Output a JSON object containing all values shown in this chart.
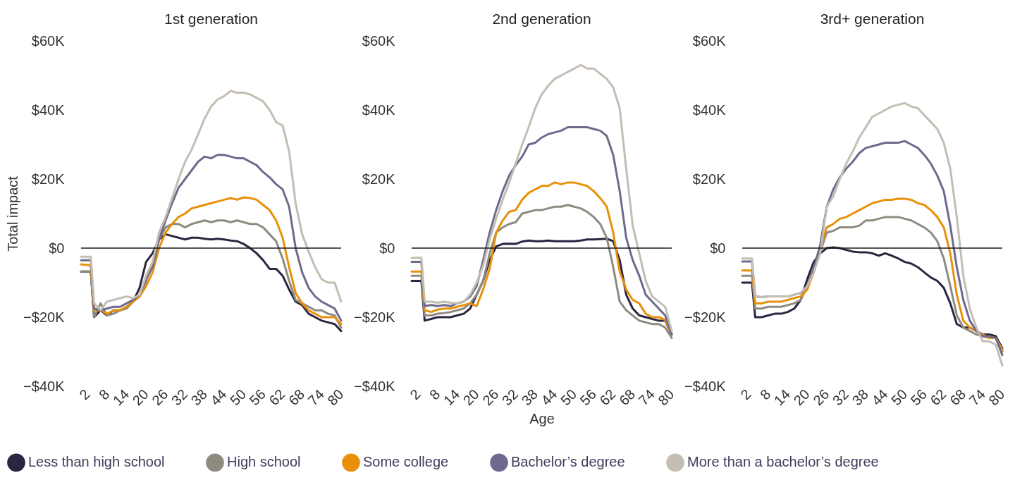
{
  "chart_data": [
    {
      "type": "line",
      "title": "1st generation",
      "ylabel": "Total impact",
      "legend": "bottom",
      "line_style": "solid",
      "x": [
        0,
        3,
        4,
        6,
        8,
        10,
        12,
        14,
        16,
        18,
        20,
        22,
        24,
        26,
        28,
        30,
        32,
        34,
        36,
        38,
        40,
        42,
        44,
        46,
        48,
        50,
        52,
        54,
        56,
        58,
        60,
        62,
        64,
        66,
        68,
        70,
        72,
        74,
        76,
        78,
        80
      ],
      "xlim": [
        0,
        80
      ],
      "xticks": [
        2,
        8,
        14,
        20,
        26,
        32,
        38,
        44,
        50,
        56,
        62,
        68,
        74,
        80
      ],
      "ylim": [
        -40,
        60
      ],
      "yticks": [
        {
          "value": -40,
          "label": "−$40K"
        },
        {
          "value": -20,
          "label": "−$20K"
        },
        {
          "value": 0,
          "label": "$0"
        },
        {
          "value": 20,
          "label": "$20K"
        },
        {
          "value": 40,
          "label": "$40K"
        },
        {
          "value": 60,
          "label": "$60K"
        }
      ],
      "ref_lines": [
        {
          "axis": "y",
          "value": 0,
          "color": "#1a1a1a"
        }
      ],
      "series": [
        {
          "name": "Less than high school",
          "color": "#2a2540",
          "values": [
            -6.8,
            -6.8,
            -20,
            -18,
            -19.5,
            -18,
            -18,
            -17,
            -15.5,
            -11.5,
            -4,
            -1.5,
            2.5,
            4,
            3.5,
            3,
            2.5,
            3,
            3,
            2.7,
            2.5,
            2.7,
            2.5,
            2.2,
            2,
            1.2,
            0,
            -1.5,
            -3.5,
            -6,
            -6,
            -8,
            -12,
            -15.5,
            -16.5,
            -19,
            -20,
            -21,
            -21.5,
            -22,
            -24
          ]
        },
        {
          "name": "High school",
          "color": "#8e8a80",
          "values": [
            -6.8,
            -6.8,
            -20,
            -16,
            -19.5,
            -19,
            -18,
            -17.5,
            -15.5,
            -14,
            -9.5,
            -4,
            2.5,
            6,
            7,
            7,
            6,
            7,
            7.5,
            8,
            7.5,
            8,
            8,
            7.5,
            8,
            7.5,
            7,
            7,
            6,
            4,
            2,
            -3,
            -9.5,
            -15,
            -16,
            -17,
            -18,
            -18,
            -19,
            -19.5,
            -23
          ]
        },
        {
          "name": "Some college",
          "color": "#e8900a",
          "values": [
            -4.7,
            -5,
            -18,
            -18,
            -19,
            -18,
            -18,
            -17,
            -15.5,
            -14,
            -11,
            -7,
            0,
            4.5,
            7,
            9,
            10,
            11.5,
            12,
            12.5,
            13,
            13.5,
            14,
            14.5,
            14,
            14.7,
            14.5,
            14,
            12.5,
            11,
            8,
            3,
            -5.5,
            -13,
            -16,
            -18,
            -19,
            -20,
            -20,
            -20,
            -22
          ]
        },
        {
          "name": "Bachelor’s degree",
          "color": "#6e6a8e",
          "values": [
            -3.5,
            -3.5,
            -17.5,
            -18,
            -17.5,
            -17,
            -17,
            -16,
            -15,
            -13.5,
            -9,
            -5.5,
            2.5,
            8,
            13,
            17.5,
            20,
            22.5,
            25,
            26.5,
            26,
            27,
            27,
            26.5,
            26,
            26,
            25,
            24,
            22,
            20.5,
            18.5,
            17,
            12,
            0,
            -7,
            -11.5,
            -14,
            -15.5,
            -16.5,
            -17.5,
            -21
          ]
        },
        {
          "name": "More than a bachelor’s degree",
          "color": "#c4bdb2",
          "values": [
            -2.5,
            -2.5,
            -16,
            -18,
            -15.5,
            -15,
            -14.5,
            -14,
            -14.5,
            -13.5,
            -8,
            -4,
            4.5,
            9,
            14.5,
            20,
            25,
            28.5,
            33,
            37.5,
            41,
            43,
            44,
            45.5,
            45,
            45,
            44.5,
            43.5,
            42.5,
            40,
            36.5,
            35.5,
            28,
            13,
            4,
            -1,
            -5.5,
            -9,
            -10,
            -10,
            -15.5
          ]
        }
      ]
    },
    {
      "type": "line",
      "title": "2nd generation",
      "xlabel": "Age",
      "line_style": "solid",
      "x": [
        0,
        3,
        4,
        6,
        8,
        10,
        12,
        14,
        16,
        18,
        20,
        22,
        24,
        26,
        28,
        30,
        32,
        34,
        36,
        38,
        40,
        42,
        44,
        46,
        48,
        50,
        52,
        54,
        56,
        58,
        60,
        62,
        64,
        66,
        68,
        70,
        72,
        74,
        76,
        78,
        80
      ],
      "xlim": [
        0,
        80
      ],
      "xticks": [
        2,
        8,
        14,
        20,
        26,
        32,
        38,
        44,
        50,
        56,
        62,
        68,
        74,
        80
      ],
      "ylim": [
        -40,
        60
      ],
      "yticks": [
        {
          "value": -40,
          "label": "−$40K"
        },
        {
          "value": -20,
          "label": "−$20K"
        },
        {
          "value": 0,
          "label": "$0"
        },
        {
          "value": 20,
          "label": "$20K"
        },
        {
          "value": 40,
          "label": "$40K"
        },
        {
          "value": 60,
          "label": "$60K"
        }
      ],
      "ref_lines": [
        {
          "axis": "y",
          "value": 0,
          "color": "#1a1a1a"
        }
      ],
      "series": [
        {
          "color": "#2a2540",
          "values": [
            -9.5,
            -9.5,
            -21,
            -20.5,
            -20,
            -20,
            -20,
            -19.5,
            -19,
            -17.5,
            -13.5,
            -9.5,
            -3.5,
            0.5,
            1.2,
            1.3,
            1.2,
            1.9,
            2.2,
            2,
            2,
            2.2,
            2,
            2,
            2,
            2,
            2.2,
            2.5,
            2.5,
            2.6,
            2.7,
            2,
            -3.5,
            -13.5,
            -17.5,
            -19.5,
            -20,
            -20.5,
            -21,
            -21,
            -25
          ]
        },
        {
          "color": "#8e8a80",
          "values": [
            -8,
            -8,
            -19.5,
            -19.5,
            -19,
            -18.8,
            -18.5,
            -18,
            -17.5,
            -16,
            -13.5,
            -9.5,
            -1.5,
            4.5,
            6,
            7,
            7.5,
            10,
            10.5,
            11,
            11,
            11.5,
            12,
            12,
            12.5,
            12,
            11.5,
            10.5,
            9,
            7,
            3,
            -5.5,
            -15.5,
            -18,
            -19.5,
            -21,
            -21.5,
            -22,
            -22,
            -23,
            -26
          ]
        },
        {
          "color": "#e8900a",
          "values": [
            -6.8,
            -6.8,
            -18,
            -18.5,
            -17.8,
            -17.5,
            -17.5,
            -17,
            -16.5,
            -16,
            -16.8,
            -12,
            -6,
            4.5,
            8,
            10.5,
            11,
            14,
            16,
            17,
            18,
            18,
            19,
            18.5,
            19,
            19,
            18.5,
            18,
            16.5,
            14.5,
            12,
            4.5,
            -6.8,
            -12,
            -15,
            -16,
            -19,
            -20,
            -20,
            -20.8,
            -25
          ]
        },
        {
          "color": "#6e6a8e",
          "values": [
            -4,
            -4,
            -16.8,
            -16.5,
            -16.8,
            -16.5,
            -16.8,
            -16,
            -15.5,
            -14,
            -11,
            -3.5,
            4.5,
            11,
            16.5,
            21,
            24,
            26.5,
            30,
            30.5,
            32,
            33,
            33.5,
            34,
            35,
            35,
            35,
            35,
            34.5,
            34,
            32.5,
            27,
            16.5,
            3,
            -3.5,
            -8,
            -13.5,
            -15.5,
            -17.5,
            -19.5,
            -25
          ]
        },
        {
          "color": "#c4bdb2",
          "values": [
            -2.8,
            -2.8,
            -15.5,
            -15.5,
            -15.8,
            -15.5,
            -15.8,
            -16,
            -15.5,
            -13.5,
            -10,
            -5,
            2.5,
            8.5,
            14,
            19,
            24.5,
            30,
            35,
            40.5,
            44.5,
            47,
            49,
            50,
            51,
            52,
            53,
            52,
            52,
            50.5,
            49,
            46.5,
            40.5,
            23,
            6.5,
            -1.5,
            -9.5,
            -14,
            -15.5,
            -17,
            -24
          ]
        }
      ]
    },
    {
      "type": "line",
      "title": "3rd+ generation",
      "line_style": "solid",
      "x": [
        0,
        3,
        4,
        6,
        8,
        10,
        12,
        14,
        16,
        18,
        20,
        22,
        24,
        26,
        28,
        30,
        32,
        34,
        36,
        38,
        40,
        42,
        44,
        46,
        48,
        50,
        52,
        54,
        56,
        58,
        60,
        62,
        64,
        66,
        68,
        70,
        72,
        74,
        76,
        78,
        80
      ],
      "xlim": [
        0,
        80
      ],
      "xticks": [
        2,
        8,
        14,
        20,
        26,
        32,
        38,
        44,
        50,
        56,
        62,
        68,
        74,
        80
      ],
      "ylim": [
        -40,
        60
      ],
      "yticks": [
        {
          "value": -40,
          "label": "−$40K"
        },
        {
          "value": -20,
          "label": "−$20K"
        },
        {
          "value": 0,
          "label": "$0"
        },
        {
          "value": 20,
          "label": "$20K"
        },
        {
          "value": 40,
          "label": "$40K"
        },
        {
          "value": 60,
          "label": "$60K"
        }
      ],
      "ref_lines": [
        {
          "axis": "y",
          "value": 0,
          "color": "#1a1a1a"
        }
      ],
      "series": [
        {
          "color": "#2a2540",
          "values": [
            -10,
            -10,
            -20,
            -20,
            -19.5,
            -19,
            -19,
            -18.5,
            -17.5,
            -15,
            -9,
            -4,
            -1.5,
            0,
            0.2,
            0,
            -0.5,
            -1,
            -1.2,
            -1.2,
            -1.5,
            -2.2,
            -1.5,
            -2.2,
            -3,
            -4,
            -4.5,
            -5.5,
            -7,
            -8.5,
            -9.5,
            -11.5,
            -16,
            -22,
            -23,
            -23,
            -24,
            -25,
            -25,
            -25.5,
            -29
          ]
        },
        {
          "color": "#8e8a80",
          "values": [
            -8,
            -8,
            -17.5,
            -17.5,
            -17,
            -17,
            -17,
            -16.5,
            -16,
            -15,
            -11,
            -5.5,
            -1,
            4.5,
            5,
            6,
            6,
            6,
            6.5,
            8,
            8,
            8.5,
            9,
            9,
            9,
            8.5,
            8,
            7,
            6,
            4.5,
            2,
            -3,
            -11,
            -19.5,
            -23,
            -24,
            -25,
            -25.5,
            -26,
            -26,
            -30
          ]
        },
        {
          "color": "#e8900a",
          "values": [
            -6.5,
            -6.5,
            -16,
            -16,
            -15.5,
            -15.5,
            -15.5,
            -15,
            -14.5,
            -14,
            -12,
            -7,
            0,
            6,
            7,
            8.5,
            9,
            10,
            11,
            12,
            13,
            13.5,
            14,
            14,
            14.3,
            14.3,
            14,
            13,
            12.5,
            11,
            9,
            6,
            -1.5,
            -13.5,
            -21,
            -23,
            -24,
            -25,
            -26,
            -26,
            -29.5
          ]
        },
        {
          "color": "#6e6a8e",
          "values": [
            -3.9,
            -3.9,
            -14,
            -14.2,
            -14,
            -14,
            -14,
            -14,
            -13.5,
            -13,
            -11,
            -6,
            1,
            12,
            17,
            20.5,
            23,
            25,
            27.5,
            29,
            29.5,
            30,
            30.5,
            30.5,
            30.5,
            31,
            30,
            29,
            27,
            24.5,
            21,
            16.5,
            6.5,
            -5.5,
            -15,
            -21,
            -24,
            -25.5,
            -25.5,
            -26,
            -31
          ]
        },
        {
          "color": "#c4bdb2",
          "values": [
            -3,
            -3,
            -14,
            -14.2,
            -14,
            -14,
            -14,
            -14,
            -13.5,
            -13,
            -11,
            -7,
            -1.5,
            12,
            15,
            20,
            24.5,
            28,
            32,
            35,
            38,
            39,
            40,
            41,
            41.5,
            42,
            41,
            40.5,
            38.5,
            36.5,
            34.5,
            30.5,
            23,
            9,
            -8,
            -17.5,
            -23,
            -27,
            -27,
            -28,
            -34
          ]
        }
      ]
    }
  ]
}
